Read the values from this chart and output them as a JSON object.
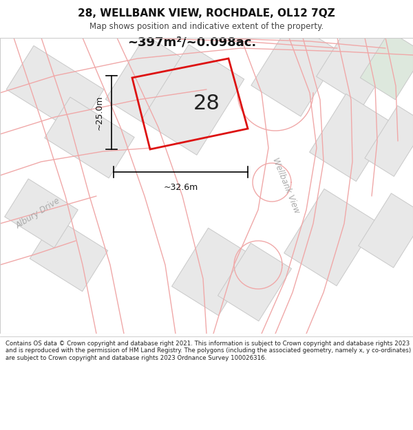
{
  "title": "28, WELLBANK VIEW, ROCHDALE, OL12 7QZ",
  "subtitle": "Map shows position and indicative extent of the property.",
  "area_text": "~397m²/~0.098ac.",
  "label_28": "28",
  "dim_height": "~25.0m",
  "dim_width": "~32.6m",
  "street_albury": "Albury Drive",
  "street_wellbank": "Wellbank View",
  "footer": "Contains OS data © Crown copyright and database right 2021. This information is subject to Crown copyright and database rights 2023 and is reproduced with the permission of HM Land Registry. The polygons (including the associated geometry, namely x, y co-ordinates) are subject to Crown copyright and database rights 2023 Ordnance Survey 100026316.",
  "map_bg": "#f7f6f4",
  "building_fill": "#e8e8e8",
  "building_stroke": "#c8c8c8",
  "road_line_color": "#f0a8a8",
  "plot_stroke": "#dd1111",
  "dim_color": "#111111",
  "text_color": "#333333",
  "title_color": "#111111",
  "street_label_color": "#aaaaaa",
  "white": "#ffffff"
}
